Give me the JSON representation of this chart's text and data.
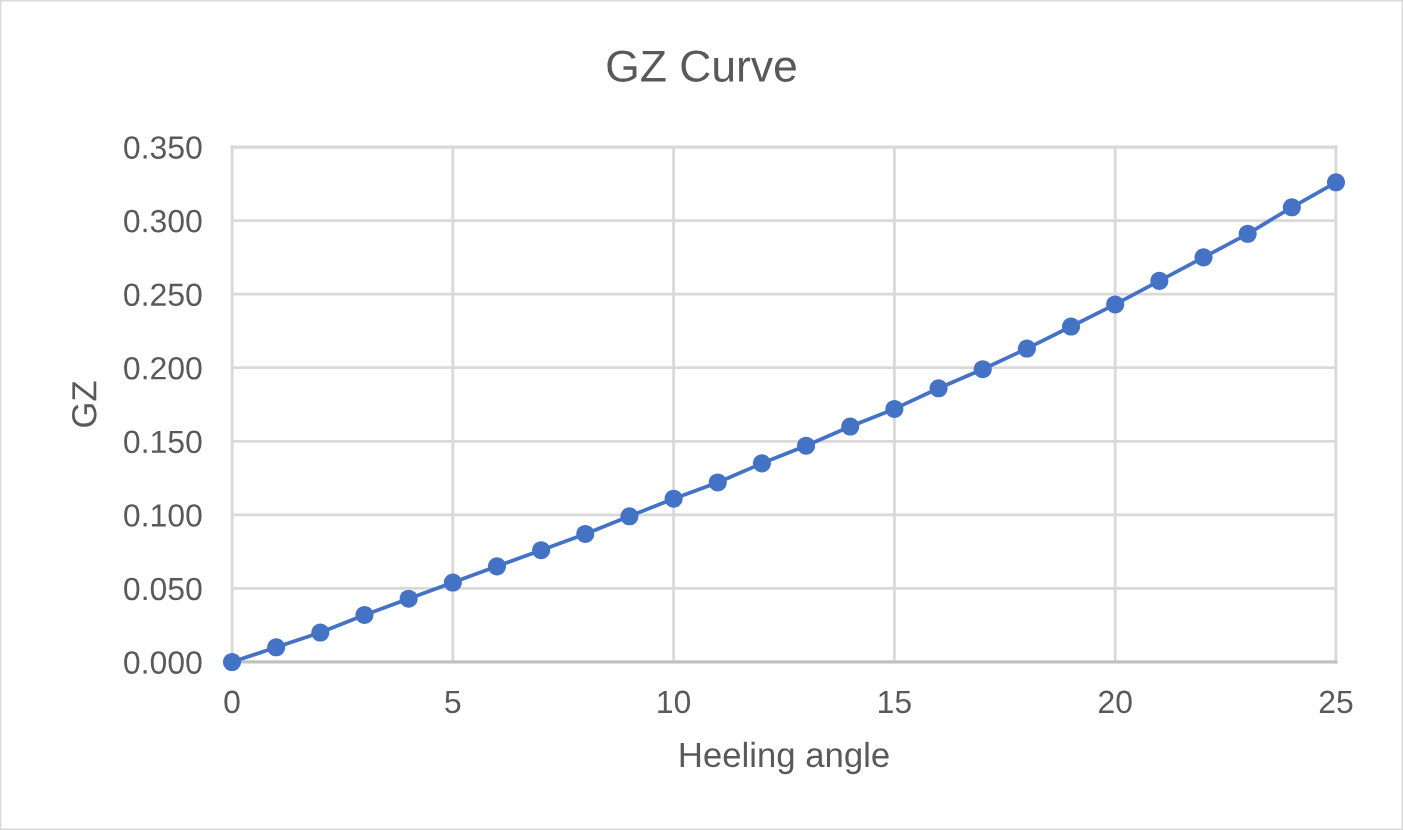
{
  "chart_data": {
    "type": "line",
    "title": "GZ Curve",
    "xlabel": "Heeling angle",
    "ylabel": "GZ",
    "x": [
      0,
      1,
      2,
      3,
      4,
      5,
      6,
      7,
      8,
      9,
      10,
      11,
      12,
      13,
      14,
      15,
      16,
      17,
      18,
      19,
      20,
      21,
      22,
      23,
      24,
      25
    ],
    "series": [
      {
        "color": "#4472c4",
        "values": [
          0.0,
          0.01,
          0.02,
          0.032,
          0.043,
          0.054,
          0.065,
          0.076,
          0.087,
          0.099,
          0.111,
          0.122,
          0.135,
          0.147,
          0.16,
          0.172,
          0.186,
          0.199,
          0.213,
          0.228,
          0.243,
          0.259,
          0.275,
          0.291,
          0.309,
          0.326
        ]
      }
    ],
    "xlim": [
      0,
      25
    ],
    "xticks": [
      0,
      5,
      10,
      15,
      20,
      25
    ],
    "ylim": [
      0,
      0.35
    ],
    "yticks": [
      {
        "value": 0,
        "label": "0.000"
      },
      {
        "value": 0.05,
        "label": "0.050"
      },
      {
        "value": 0.1,
        "label": "0.100"
      },
      {
        "value": 0.15,
        "label": "0.150"
      },
      {
        "value": 0.2,
        "label": "0.200"
      },
      {
        "value": 0.25,
        "label": "0.250"
      },
      {
        "value": 0.3,
        "label": "0.300"
      },
      {
        "value": 0.35,
        "label": "0.350"
      }
    ],
    "grid": true,
    "marker": "circle",
    "line_style": "solid"
  }
}
